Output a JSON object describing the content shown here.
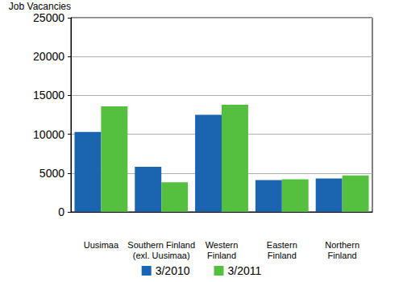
{
  "chart_data": {
    "type": "bar",
    "y_label": "Job Vacancies",
    "categories": [
      "Uusimaa",
      "Southern Finland\n(exl. Uusimaa)",
      "Western\nFinland",
      "Eastern\nFinland",
      "Northern\nFinland"
    ],
    "series": [
      {
        "name": "3/2010",
        "color": "#1a64b0",
        "values": [
          10300,
          5800,
          12500,
          4100,
          4300
        ]
      },
      {
        "name": "3/2011",
        "color": "#55c040",
        "values": [
          13600,
          3800,
          13800,
          4200,
          4700
        ]
      }
    ],
    "ylim": [
      0,
      25000
    ],
    "yticks": [
      0,
      5000,
      10000,
      15000,
      20000,
      25000
    ],
    "grid": true,
    "legend": "bottom"
  }
}
